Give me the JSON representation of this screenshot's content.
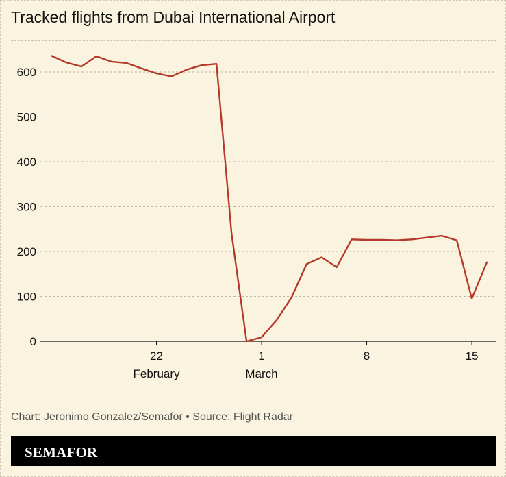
{
  "header": {
    "title": "Tracked flights from Dubai International Airport"
  },
  "footer": {
    "credit": "Chart: Jeronimo Gonzalez/Semafor • Source: Flight Radar",
    "brand": "SEMAFOR"
  },
  "colors": {
    "background": "#f9f3df",
    "line": "#b5392a",
    "brand_bar": "#000000"
  },
  "chart_data": {
    "type": "line",
    "title": "Tracked flights from Dubai International Airport",
    "xlabel": "",
    "ylabel": "",
    "ylim": [
      0,
      650
    ],
    "yticks": [
      0,
      100,
      200,
      300,
      400,
      500,
      600
    ],
    "xlim": [
      "2026-02-15",
      "2026-03-17"
    ],
    "xticks": [
      {
        "date": "2026-02-22",
        "label": "22",
        "sublabel": "February"
      },
      {
        "date": "2026-03-01",
        "label": "1",
        "sublabel": "March"
      },
      {
        "date": "2026-03-08",
        "label": "8",
        "sublabel": ""
      },
      {
        "date": "2026-03-15",
        "label": "15",
        "sublabel": ""
      }
    ],
    "grid": "horizontal",
    "series": [
      {
        "points": [
          [
            "2026-02-15",
            636
          ],
          [
            "2026-02-16",
            621
          ],
          [
            "2026-02-17",
            612
          ],
          [
            "2026-02-18",
            635
          ],
          [
            "2026-02-19",
            623
          ],
          [
            "2026-02-20",
            620
          ],
          [
            "2026-02-21",
            608
          ],
          [
            "2026-02-22",
            597
          ],
          [
            "2026-02-23",
            590
          ],
          [
            "2026-02-24",
            605
          ],
          [
            "2026-02-25",
            615
          ],
          [
            "2026-02-26",
            618
          ],
          [
            "2026-02-27",
            240
          ],
          [
            "2026-02-28",
            0
          ],
          [
            "2026-03-01",
            9
          ],
          [
            "2026-03-02",
            47
          ],
          [
            "2026-03-03",
            98
          ],
          [
            "2026-03-04",
            172
          ],
          [
            "2026-03-05",
            187
          ],
          [
            "2026-03-06",
            165
          ],
          [
            "2026-03-07",
            227
          ],
          [
            "2026-03-08",
            226
          ],
          [
            "2026-03-09",
            226
          ],
          [
            "2026-03-10",
            225
          ],
          [
            "2026-03-11",
            227
          ],
          [
            "2026-03-12",
            231
          ],
          [
            "2026-03-13",
            235
          ],
          [
            "2026-03-14",
            225
          ],
          [
            "2026-03-15",
            95
          ],
          [
            "2026-03-16",
            176
          ]
        ]
      }
    ]
  }
}
